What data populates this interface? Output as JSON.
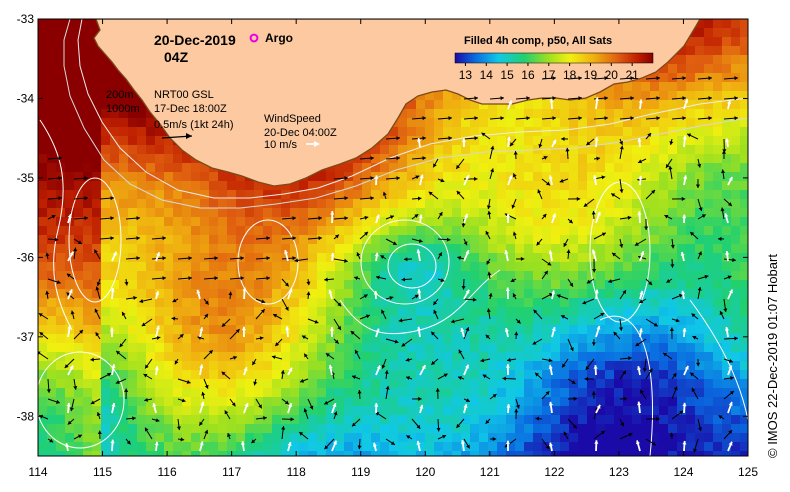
{
  "title": {
    "date": "20-Dec-2019",
    "time": "04Z",
    "argo_label": "Argo"
  },
  "colorbar": {
    "title": "Filled 4h comp, p50, All Sats",
    "ticks": [
      "13",
      "14",
      "15",
      "16",
      "17",
      "18",
      "19",
      "20",
      "21"
    ],
    "vmin": 12.5,
    "vmax": 22
  },
  "legend": {
    "isobath_shallow": "200m",
    "isobath_deep": "1000m",
    "current_source": "NRT00 GSL",
    "current_time": "17-Dec 18:00Z",
    "current_scale": "0.5m/s (1kt 24h)",
    "wind_title": "WindSpeed",
    "wind_time": "20-Dec 04:00Z",
    "wind_scale": "10 m/s"
  },
  "axes": {
    "x_ticks": [
      "114",
      "115",
      "116",
      "117",
      "118",
      "119",
      "120",
      "121",
      "122",
      "123",
      "124",
      "125"
    ],
    "y_ticks": [
      "-33",
      "-34",
      "-35",
      "-36",
      "-37",
      "-38"
    ],
    "lon_range": [
      114,
      125
    ],
    "lat_range": [
      -38.5,
      -33
    ]
  },
  "credit": "© IMOS 22-Dec-2019 01:07 Hobart",
  "colors": {
    "land": "#fcc9a0",
    "coast": "#7a4a1c",
    "argo": "#e800e8",
    "isobath": "#d8d8d8",
    "contour": "#ffffff",
    "current_arrow": "#000000",
    "wind_arrow": "#ffffff"
  }
}
